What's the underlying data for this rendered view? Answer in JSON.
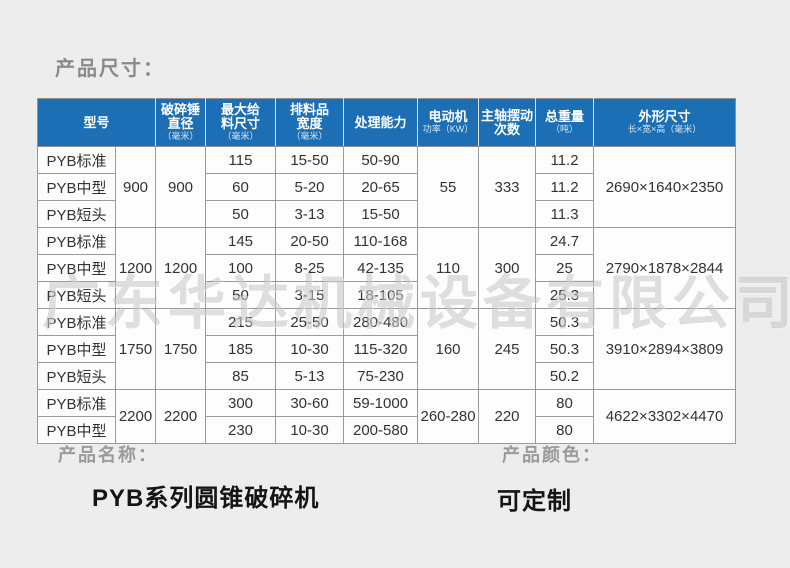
{
  "page": {
    "title": "产品尺寸："
  },
  "watermark": {
    "text": "广东华达机械设备有限公司"
  },
  "colors": {
    "header_bg": "#1d6fb5",
    "header_text": "#ffffff",
    "table_border": "#8f8f8f",
    "cell_bg": "#fdfdfe",
    "body_text": "#333333",
    "label_text": "#9a9a9a",
    "value_text": "#141414",
    "page_bg": "#ededee",
    "watermark_text": "#7d8287"
  },
  "table": {
    "headers": [
      {
        "key": "model",
        "lines": [
          "型号"
        ],
        "sub": "",
        "colspan": 2
      },
      {
        "key": "hammer-diameter",
        "lines": [
          "破碎锤",
          "直径"
        ],
        "sub": "（毫米）",
        "colspan": 1
      },
      {
        "key": "max-feed-size",
        "lines": [
          "最大给",
          "料尺寸"
        ],
        "sub": "（毫米）",
        "colspan": 1
      },
      {
        "key": "discharge-width",
        "lines": [
          "排料品",
          "宽度"
        ],
        "sub": "（毫米）",
        "colspan": 1
      },
      {
        "key": "capacity",
        "lines": [
          "处理能力"
        ],
        "sub": "",
        "colspan": 1
      },
      {
        "key": "motor-power",
        "lines": [
          "电动机"
        ],
        "sub": "功率（KW）",
        "colspan": 1
      },
      {
        "key": "spindle-swings",
        "lines": [
          "主轴摆动",
          "次数"
        ],
        "sub": "",
        "colspan": 1
      },
      {
        "key": "total-weight",
        "lines": [
          "总重量"
        ],
        "sub": "（吨）",
        "colspan": 1
      },
      {
        "key": "overall-dimensions",
        "lines": [
          "外形尺寸"
        ],
        "sub": "长×宽×高（毫米）",
        "colspan": 1
      }
    ],
    "groups": [
      {
        "size": "900",
        "hammer_diameter": "900",
        "motor_power": "55",
        "spindle_swings": "333",
        "dimensions": "2690×1640×2350",
        "rows": [
          {
            "model": "PYB标准",
            "max_feed": "115",
            "discharge_width": "15-50",
            "capacity": "50-90",
            "weight": "11.2"
          },
          {
            "model": "PYB中型",
            "max_feed": "60",
            "discharge_width": "5-20",
            "capacity": "20-65",
            "weight": "11.2"
          },
          {
            "model": "PYB短头",
            "max_feed": "50",
            "discharge_width": "3-13",
            "capacity": "15-50",
            "weight": "11.3"
          }
        ]
      },
      {
        "size": "1200",
        "hammer_diameter": "1200",
        "motor_power": "110",
        "spindle_swings": "300",
        "dimensions": "2790×1878×2844",
        "rows": [
          {
            "model": "PYB标准",
            "max_feed": "145",
            "discharge_width": "20-50",
            "capacity": "110-168",
            "weight": "24.7"
          },
          {
            "model": "PYB中型",
            "max_feed": "100",
            "discharge_width": "8-25",
            "capacity": "42-135",
            "weight": "25"
          },
          {
            "model": "PYB短头",
            "max_feed": "50",
            "discharge_width": "3-15",
            "capacity": "18-105",
            "weight": "25.3"
          }
        ]
      },
      {
        "size": "1750",
        "hammer_diameter": "1750",
        "motor_power": "160",
        "spindle_swings": "245",
        "dimensions": "3910×2894×3809",
        "rows": [
          {
            "model": "PYB标准",
            "max_feed": "215",
            "discharge_width": "25-50",
            "capacity": "280-480",
            "weight": "50.3"
          },
          {
            "model": "PYB中型",
            "max_feed": "185",
            "discharge_width": "10-30",
            "capacity": "115-320",
            "weight": "50.3"
          },
          {
            "model": "PYB短头",
            "max_feed": "85",
            "discharge_width": "5-13",
            "capacity": "75-230",
            "weight": "50.2"
          }
        ]
      },
      {
        "size": "2200",
        "hammer_diameter": "2200",
        "motor_power": "260-280",
        "spindle_swings": "220",
        "dimensions": "4622×3302×4470",
        "rows": [
          {
            "model": "PYB标准",
            "max_feed": "300",
            "discharge_width": "30-60",
            "capacity": "59-1000",
            "weight": "80"
          },
          {
            "model": "PYB中型",
            "max_feed": "230",
            "discharge_width": "10-30",
            "capacity": "200-580",
            "weight": "80"
          }
        ]
      }
    ]
  },
  "footer": {
    "name_label": "产品名称：",
    "name_value": "PYB系列圆锥破碎机",
    "color_label": "产品颜色：",
    "color_value": "可定制"
  }
}
